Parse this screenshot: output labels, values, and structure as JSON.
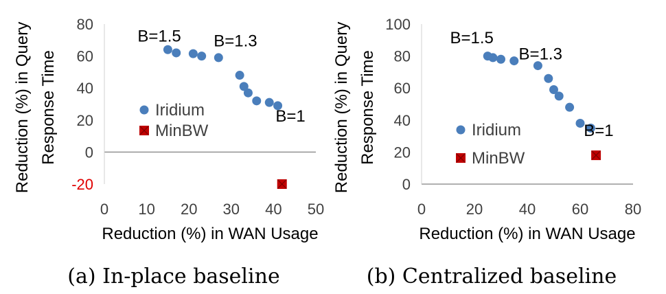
{
  "chart_data": [
    {
      "type": "scatter",
      "caption": "(a) In-place baseline",
      "xlabel": "Reduction (%) in WAN Usage",
      "ylabel": "Reduction (%) in Query Response Time",
      "xlim": [
        0,
        50
      ],
      "ylim": [
        -20,
        80
      ],
      "xticks": [
        "0",
        "10",
        "20",
        "30",
        "40",
        "50"
      ],
      "yticks": [
        "80",
        "60",
        "40",
        "20",
        "0",
        "-20"
      ],
      "grid": false,
      "legend_position": "left-middle",
      "series": [
        {
          "name": "Iridium",
          "marker": "circle",
          "color": "#4a7ebb",
          "points": [
            [
              15,
              64
            ],
            [
              17,
              62
            ],
            [
              21,
              61.5
            ],
            [
              23,
              60
            ],
            [
              27,
              59
            ],
            [
              32,
              48
            ],
            [
              33,
              41
            ],
            [
              34,
              37
            ],
            [
              36,
              32
            ],
            [
              39,
              31
            ],
            [
              41,
              29
            ]
          ]
        },
        {
          "name": "MinBW",
          "marker": "square-x",
          "color": "#c00000",
          "points": [
            [
              42,
              -20
            ]
          ]
        }
      ],
      "annotations": [
        {
          "text": "B=1.5",
          "x": 13,
          "y": 69
        },
        {
          "text": "B=1.3",
          "x": 31,
          "y": 66
        },
        {
          "text": "B=1",
          "x": 44,
          "y": 19
        }
      ]
    },
    {
      "type": "scatter",
      "caption": "(b) Centralized baseline",
      "xlabel": "Reduction (%) in WAN Usage",
      "ylabel": "Reduction (%) in Query Response Time",
      "xlim": [
        0,
        80
      ],
      "ylim": [
        0,
        100
      ],
      "xticks": [
        "0",
        "20",
        "40",
        "60",
        "80"
      ],
      "yticks": [
        "100",
        "80",
        "60",
        "40",
        "20",
        "0"
      ],
      "grid": false,
      "legend_position": "left-middle",
      "series": [
        {
          "name": "Iridium",
          "marker": "circle",
          "color": "#4a7ebb",
          "points": [
            [
              25,
              80
            ],
            [
              27,
              79
            ],
            [
              30,
              78
            ],
            [
              35,
              77
            ],
            [
              44,
              74
            ],
            [
              48,
              66
            ],
            [
              50,
              59
            ],
            [
              52,
              55
            ],
            [
              56,
              48
            ],
            [
              60,
              38
            ],
            [
              64,
              35
            ]
          ]
        },
        {
          "name": "MinBW",
          "marker": "square-x",
          "color": "#c00000",
          "points": [
            [
              66,
              18
            ]
          ]
        }
      ],
      "annotations": [
        {
          "text": "B=1.5",
          "x": 19,
          "y": 88
        },
        {
          "text": "B=1.3",
          "x": 45,
          "y": 78
        },
        {
          "text": "B=1",
          "x": 67,
          "y": 30
        }
      ]
    }
  ]
}
